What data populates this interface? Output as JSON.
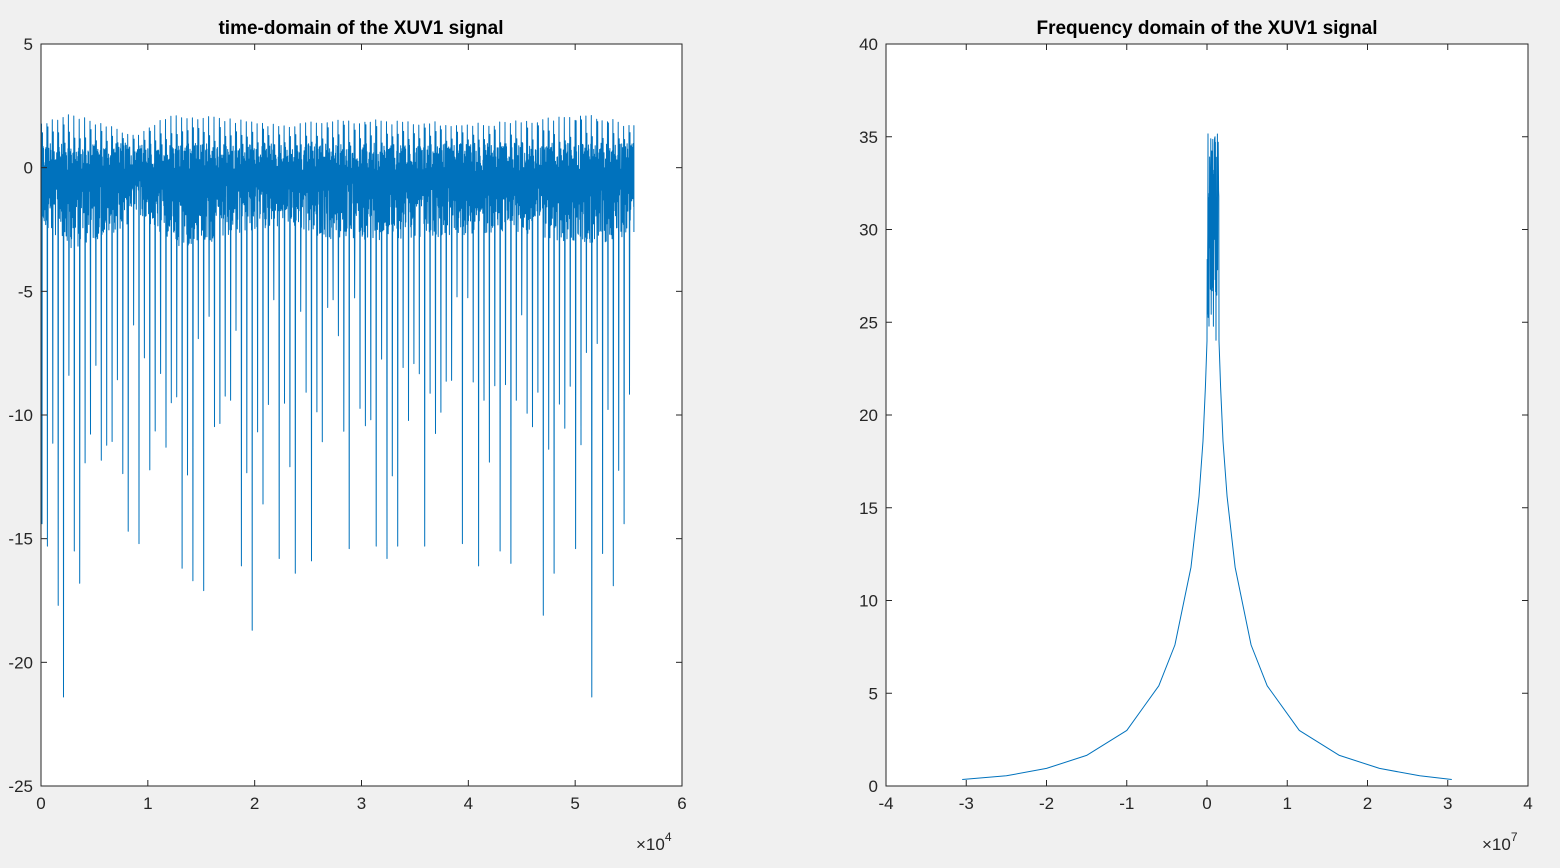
{
  "window": {
    "background": "#f0f0f0"
  },
  "chart_data": [
    {
      "type": "line",
      "title": "time-domain of the XUV1 signal",
      "xlabel": "",
      "ylabel": "",
      "xlim": [
        0,
        60000
      ],
      "ylim": [
        -25,
        5
      ],
      "xticks": [
        0,
        1,
        2,
        3,
        4,
        5,
        6
      ],
      "xtick_labels": [
        "0",
        "1",
        "2",
        "3",
        "4",
        "5",
        "6"
      ],
      "x_exponent_label": "×10",
      "x_exponent": "4",
      "yticks": [
        -25,
        -20,
        -15,
        -10,
        -5,
        0,
        5
      ],
      "ytick_labels": [
        "-25",
        "-20",
        "-15",
        "-10",
        "-5",
        "0",
        "5"
      ],
      "grid": false,
      "color": "#0072bd",
      "series": [
        {
          "x_range": [
            0,
            55500
          ],
          "n_pulses": 110,
          "baseline": 0,
          "upper_envelope": [
            [
              0,
              1.8
            ],
            [
              3000,
              2.2
            ],
            [
              7000,
              1.7
            ],
            [
              9000,
              1.3
            ],
            [
              12000,
              2.2
            ],
            [
              17000,
              2.1
            ],
            [
              19500,
              1.9
            ],
            [
              23000,
              1.7
            ],
            [
              27000,
              2.0
            ],
            [
              35000,
              1.9
            ],
            [
              40000,
              1.8
            ],
            [
              45000,
              1.9
            ],
            [
              52000,
              2.2
            ],
            [
              55500,
              1.7
            ]
          ],
          "lower_dense_envelope": [
            [
              0,
              -2.5
            ],
            [
              3000,
              -3.3
            ],
            [
              7000,
              -2.6
            ],
            [
              9000,
              -1.9
            ],
            [
              13000,
              -3.2
            ],
            [
              17000,
              -3.0
            ],
            [
              20000,
              -2.6
            ],
            [
              23000,
              -2.3
            ],
            [
              27000,
              -3.0
            ],
            [
              37000,
              -2.8
            ],
            [
              45000,
              -2.7
            ],
            [
              52000,
              -3.2
            ],
            [
              55500,
              -2.6
            ]
          ],
          "notable_minima": [
            [
              200,
              -14.4
            ],
            [
              1000,
              -15.3
            ],
            [
              1700,
              -17.7
            ],
            [
              2200,
              -21.4
            ],
            [
              3200,
              -15.5
            ],
            [
              4000,
              -16.8
            ],
            [
              8500,
              -14.7
            ],
            [
              9200,
              -15.2
            ],
            [
              13500,
              -16.2
            ],
            [
              14500,
              -16.7
            ],
            [
              15500,
              -17.1
            ],
            [
              19000,
              -16.1
            ],
            [
              19700,
              -18.7
            ],
            [
              20700,
              -13.6
            ],
            [
              22500,
              -15.8
            ],
            [
              24000,
              -16.4
            ],
            [
              25500,
              -15.9
            ],
            [
              29000,
              -15.4
            ],
            [
              31500,
              -15.3
            ],
            [
              32500,
              -15.8
            ],
            [
              33500,
              -15.3
            ],
            [
              36000,
              -15.3
            ],
            [
              39500,
              -15.2
            ],
            [
              41000,
              -16.1
            ],
            [
              43000,
              -15.5
            ],
            [
              44000,
              -16.0
            ],
            [
              47000,
              -18.1
            ],
            [
              48000,
              -16.4
            ],
            [
              50000,
              -15.4
            ],
            [
              51500,
              -21.4
            ],
            [
              52500,
              -15.6
            ],
            [
              53500,
              -16.9
            ],
            [
              54500,
              -14.4
            ]
          ]
        }
      ]
    },
    {
      "type": "line",
      "title": "Frequency domain of the XUV1 signal",
      "xlabel": "",
      "ylabel": "",
      "xlim": [
        -40000000,
        40000000
      ],
      "ylim": [
        0,
        40
      ],
      "xticks": [
        -4,
        -3,
        -2,
        -1,
        0,
        1,
        2,
        3,
        4
      ],
      "xtick_labels": [
        "-4",
        "-3",
        "-2",
        "-1",
        "0",
        "1",
        "2",
        "3",
        "4"
      ],
      "x_exponent_label": "×10",
      "x_exponent": "7",
      "yticks": [
        0,
        5,
        10,
        15,
        20,
        25,
        30,
        35,
        40
      ],
      "ytick_labels": [
        "0",
        "5",
        "10",
        "15",
        "20",
        "25",
        "30",
        "35",
        "40"
      ],
      "grid": false,
      "color": "#0072bd",
      "series": [
        {
          "x_range": [
            -30500000,
            30500000
          ],
          "peak_center": 800000,
          "peak_band_x": [
            0,
            1500000
          ],
          "peak_band_y": [
            24,
            35.2
          ],
          "curve_points": [
            [
              -30500000,
              0.35
            ],
            [
              -25000000,
              0.55
            ],
            [
              -20000000,
              0.95
            ],
            [
              -15000000,
              1.65
            ],
            [
              -10000000,
              3.0
            ],
            [
              -6000000,
              5.4
            ],
            [
              -4000000,
              7.6
            ],
            [
              -2000000,
              11.8
            ],
            [
              -1000000,
              15.6
            ],
            [
              -500000,
              18.6
            ],
            [
              -200000,
              21.5
            ],
            [
              0,
              24.0
            ],
            [
              1500000,
              24.0
            ],
            [
              1700000,
              21.5
            ],
            [
              2000000,
              18.6
            ],
            [
              2500000,
              15.6
            ],
            [
              3500000,
              11.8
            ],
            [
              5500000,
              7.6
            ],
            [
              7500000,
              5.4
            ],
            [
              11500000,
              3.0
            ],
            [
              16500000,
              1.65
            ],
            [
              21500000,
              0.95
            ],
            [
              26500000,
              0.55
            ],
            [
              30500000,
              0.35
            ]
          ]
        }
      ]
    }
  ]
}
